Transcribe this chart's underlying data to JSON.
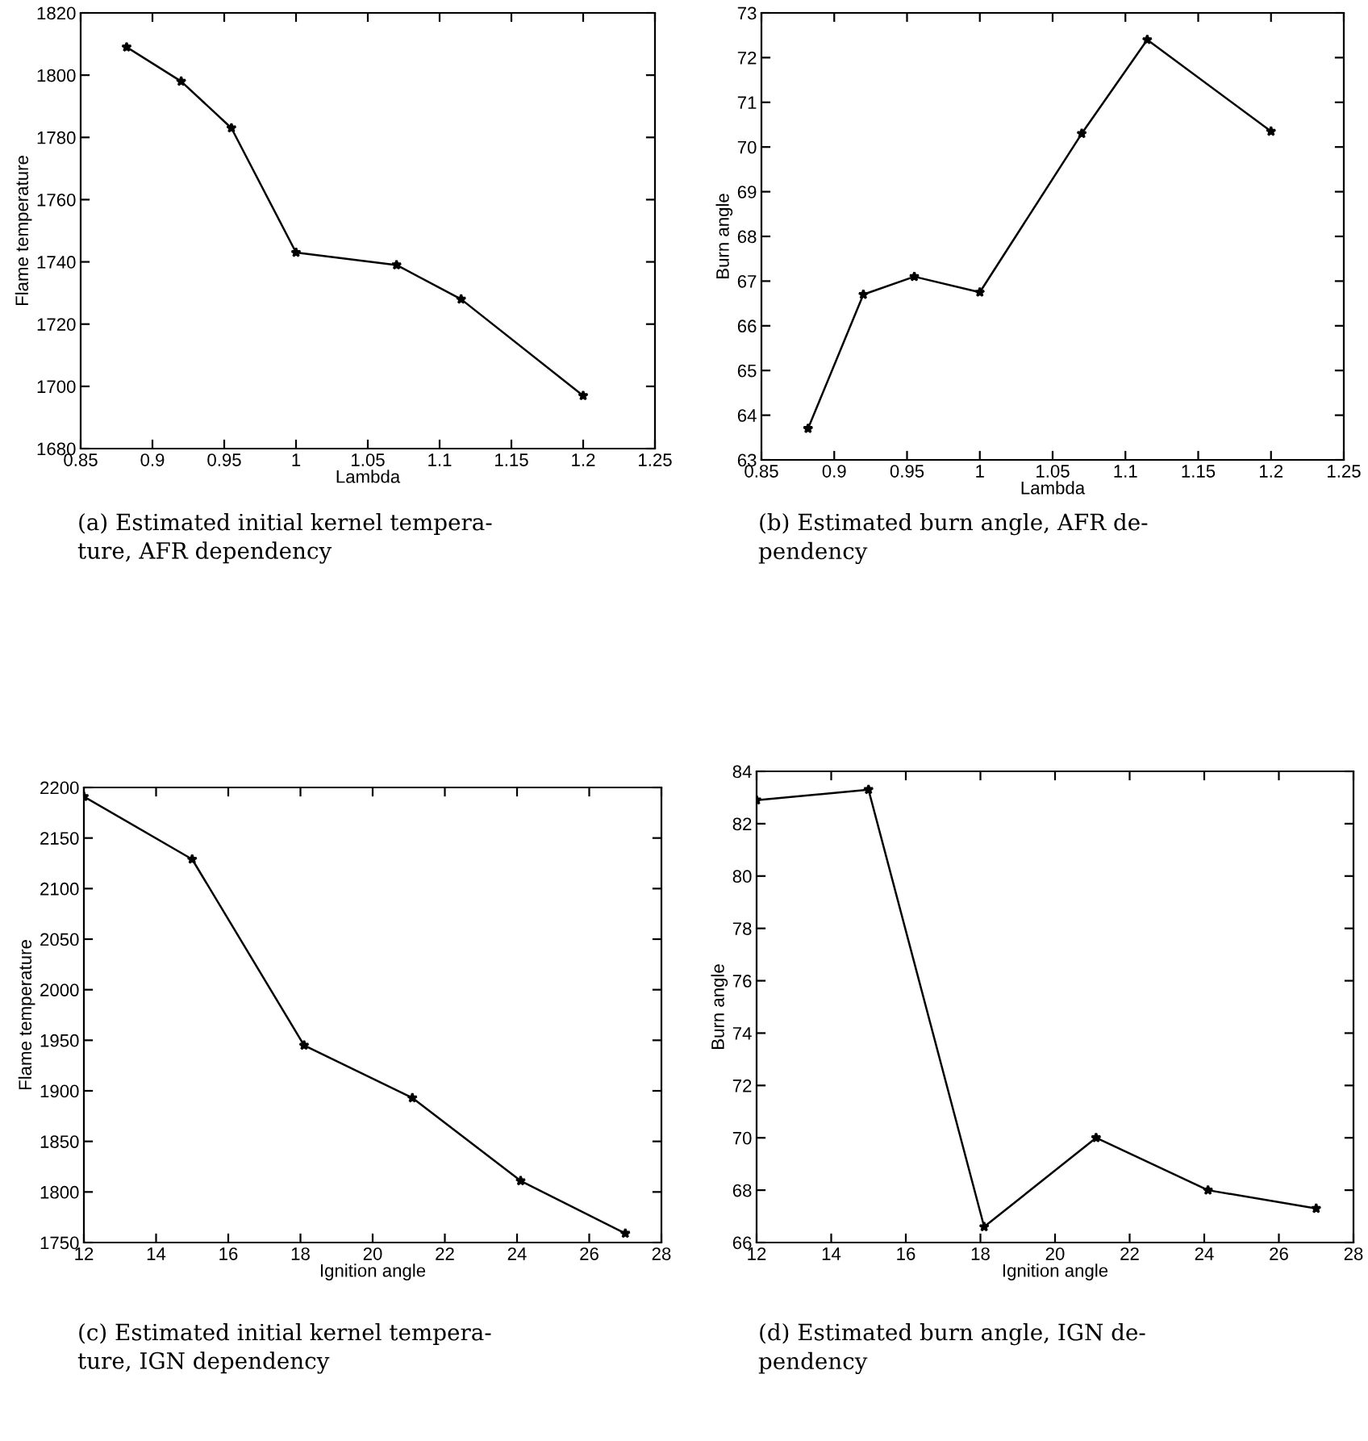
{
  "chart_data": [
    {
      "type": "line",
      "xlabel": "Lambda",
      "ylabel": "Flame temperature",
      "x": [
        0.882,
        0.92,
        0.955,
        1.0,
        1.07,
        1.115,
        1.2
      ],
      "series": [
        {
          "color": "#000000",
          "values": [
            1809,
            1798,
            1783,
            1743,
            1739,
            1728,
            1697
          ]
        }
      ],
      "xlim": [
        0.85,
        1.25
      ],
      "xticks": [
        0.85,
        0.9,
        0.95,
        1,
        1.05,
        1.1,
        1.15,
        1.2,
        1.25
      ],
      "ylim": [
        1680,
        1820
      ],
      "yticks": [
        1680,
        1700,
        1720,
        1740,
        1760,
        1780,
        1800,
        1820
      ],
      "marker": "star",
      "grid": false,
      "annotations": [
        "(a) Estimated initial kernel tempera-\nture, AFR dependency"
      ]
    },
    {
      "type": "line",
      "xlabel": "Lambda",
      "ylabel": "Burn angle",
      "x": [
        0.882,
        0.92,
        0.955,
        1.0,
        1.07,
        1.115,
        1.2
      ],
      "series": [
        {
          "color": "#000000",
          "values": [
            63.7,
            66.7,
            67.1,
            66.75,
            70.3,
            72.4,
            70.35
          ]
        }
      ],
      "xlim": [
        0.85,
        1.25
      ],
      "xticks": [
        0.85,
        0.9,
        0.95,
        1,
        1.05,
        1.1,
        1.15,
        1.2,
        1.25
      ],
      "ylim": [
        63,
        73
      ],
      "yticks": [
        63,
        64,
        65,
        66,
        67,
        68,
        69,
        70,
        71,
        72,
        73
      ],
      "marker": "star",
      "grid": false,
      "annotations": [
        "(b) Estimated burn angle, AFR de-\npendency"
      ]
    },
    {
      "type": "line",
      "xlabel": "Ignition angle",
      "ylabel": "Flame temperature",
      "x": [
        12,
        15,
        18.1,
        21.1,
        24.1,
        27
      ],
      "series": [
        {
          "color": "#000000",
          "values": [
            2191,
            2129,
            1945,
            1893,
            1811,
            1759
          ]
        }
      ],
      "xlim": [
        12,
        28
      ],
      "xticks": [
        12,
        14,
        16,
        18,
        20,
        22,
        24,
        26,
        28
      ],
      "ylim": [
        1750,
        2200
      ],
      "yticks": [
        1750,
        1800,
        1850,
        1900,
        1950,
        2000,
        2050,
        2100,
        2150,
        2200
      ],
      "marker": "star",
      "grid": false,
      "annotations": [
        "(c) Estimated initial kernel tempera-\nture, IGN dependency"
      ]
    },
    {
      "type": "line",
      "xlabel": "Ignition angle",
      "ylabel": "Burn angle",
      "x": [
        12,
        15,
        18.1,
        21.1,
        24.1,
        27
      ],
      "series": [
        {
          "color": "#000000",
          "values": [
            82.9,
            83.3,
            66.6,
            70.0,
            68.0,
            67.3
          ]
        }
      ],
      "xlim": [
        12,
        28
      ],
      "xticks": [
        12,
        14,
        16,
        18,
        20,
        22,
        24,
        26,
        28
      ],
      "ylim": [
        66,
        84
      ],
      "yticks": [
        66,
        68,
        70,
        72,
        74,
        76,
        78,
        80,
        82,
        84
      ],
      "marker": "star",
      "grid": false,
      "annotations": [
        "(d) Estimated burn angle, IGN de-\npendency"
      ]
    }
  ]
}
